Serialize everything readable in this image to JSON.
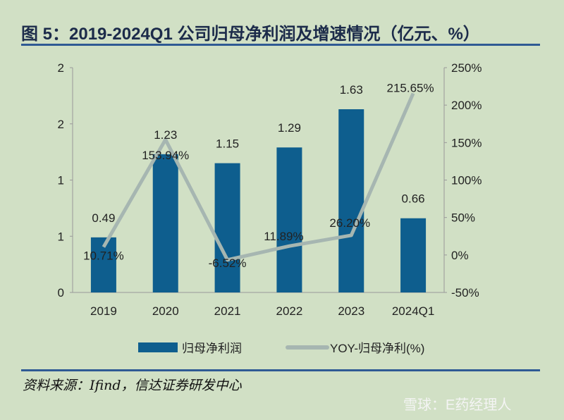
{
  "title": "图 5：2019-2024Q1 公司归母净利润及增速情况（亿元、%）",
  "source": "资料来源：Ifind，信达证券研发中心",
  "watermark": "雪球：E药经理人",
  "chart_data": {
    "type": "bar+line",
    "categories": [
      "2019",
      "2020",
      "2021",
      "2022",
      "2023",
      "2024Q1"
    ],
    "series": [
      {
        "name": "归母净利润",
        "type": "bar",
        "axis": "left",
        "values": [
          0.49,
          1.23,
          1.15,
          1.29,
          1.63,
          0.66
        ],
        "labels": [
          "0.49",
          "1.23",
          "1.15",
          "1.29",
          "1.63",
          "0.66"
        ],
        "color": "#0e5e8e"
      },
      {
        "name": "YOY-归母净利(%)",
        "type": "line",
        "axis": "right",
        "values": [
          10.71,
          153.94,
          -6.52,
          11.89,
          26.2,
          215.65
        ],
        "labels": [
          "10.71%",
          "153.94%",
          "-6.52%",
          "11.89%",
          "26.20%",
          "215.65%"
        ],
        "color": "#a6b6b1"
      }
    ],
    "left_axis": {
      "ylim": [
        0,
        2
      ],
      "ticks": [
        0,
        0.5,
        1,
        1.5,
        2
      ],
      "tick_labels": [
        "0",
        "1",
        "1",
        "2",
        "2"
      ]
    },
    "right_axis": {
      "ylim": [
        -50,
        250
      ],
      "ticks": [
        -50,
        0,
        50,
        100,
        150,
        200,
        250
      ],
      "tick_labels": [
        "-50%",
        "0%",
        "50%",
        "100%",
        "150%",
        "200%",
        "250%"
      ]
    },
    "grid": false,
    "legend": "bottom"
  }
}
